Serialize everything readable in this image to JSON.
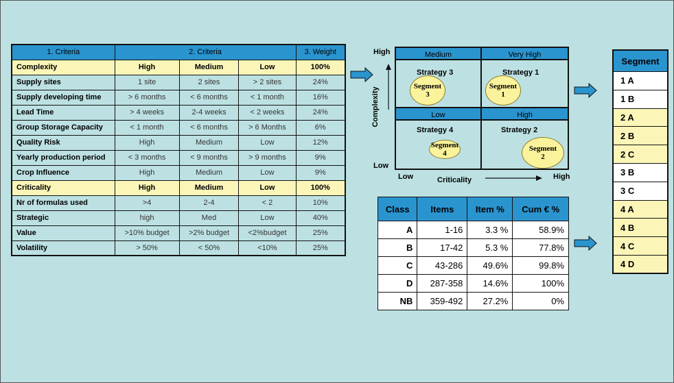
{
  "criteria_table": {
    "headers": [
      "1. Criteria",
      "2. Criteria",
      "3. Weight"
    ],
    "rows": [
      {
        "label": "Complexity",
        "high": "High",
        "medium": "Medium",
        "low": "Low",
        "weight": "100%",
        "highlight": true
      },
      {
        "label": "Supply sites",
        "high": "1 site",
        "medium": "2 sites",
        "low": "> 2 sites",
        "weight": "24%"
      },
      {
        "label": "Supply developing time",
        "high": "> 6 months",
        "medium": "< 6 months",
        "low": "< 1 month",
        "weight": "16%"
      },
      {
        "label": "Lead Time",
        "high": "> 4 weeks",
        "medium": "2-4 weeks",
        "low": "< 2 weeks",
        "weight": "24%"
      },
      {
        "label": "Group Storage Capacity",
        "high": "< 1 month",
        "medium": "< 6 months",
        "low": "> 6 Months",
        "weight": "6%"
      },
      {
        "label": "Quality Risk",
        "high": "High",
        "medium": "Medium",
        "low": "Low",
        "weight": "12%"
      },
      {
        "label": "Yearly production period",
        "high": "< 3 months",
        "medium": "< 9 months",
        "low": "> 9 months",
        "weight": "9%"
      },
      {
        "label": "Crop Influence",
        "high": "High",
        "medium": "Medium",
        "low": "Low",
        "weight": "9%"
      },
      {
        "label": "Criticality",
        "high": "High",
        "medium": "Medium",
        "low": "Low",
        "weight": "100%",
        "highlight": true
      },
      {
        "label": "Nr of formulas used",
        "high": ">4",
        "medium": "2-4",
        "low": "< 2",
        "weight": "10%"
      },
      {
        "label": "Strategic",
        "high": "high",
        "medium": "Med",
        "low": "Low",
        "weight": "40%"
      },
      {
        "label": "Value",
        "high": ">10% budget",
        "medium": ">2% budget",
        "low": "<2%budget",
        "weight": "25%"
      },
      {
        "label": "Volatility",
        "high": "> 50%",
        "medium": "< 50%",
        "low": "<10%",
        "weight": "25%"
      }
    ]
  },
  "matrix": {
    "y_axis": "Complexity",
    "x_axis": "Criticality",
    "y_high": "High",
    "y_low": "Low",
    "x_low": "Low",
    "x_high": "High",
    "quadrants": [
      {
        "header": "Medium",
        "strategy": "Strategy 3",
        "segment": "Segment",
        "segment_num": "3"
      },
      {
        "header": "Very High",
        "strategy": "Strategy 1",
        "segment": "Segment",
        "segment_num": "1"
      },
      {
        "header": "Low",
        "strategy": "Strategy 4",
        "segment": "Segment",
        "segment_num": "4"
      },
      {
        "header": "High",
        "strategy": "Strategy 2",
        "segment": "Segment",
        "segment_num": "2"
      }
    ]
  },
  "class_table": {
    "headers": [
      "Class",
      "Items",
      "Item %",
      "Cum € %"
    ],
    "rows": [
      [
        "A",
        "1-16",
        "3.3 %",
        "58.9%"
      ],
      [
        "B",
        "17-42",
        "5.3 %",
        "77.8%"
      ],
      [
        "C",
        "43-286",
        "49.6%",
        "99.8%"
      ],
      [
        "D",
        "287-358",
        "14.6%",
        "100%"
      ],
      [
        "NB",
        "359-492",
        "27.2%",
        "0%"
      ]
    ]
  },
  "segments": {
    "header": "Segment",
    "items": [
      {
        "label": "1 A",
        "color": "white"
      },
      {
        "label": "1 B",
        "color": "white"
      },
      {
        "label": "2 A",
        "color": "yellow"
      },
      {
        "label": "2 B",
        "color": "yellow"
      },
      {
        "label": "2 C",
        "color": "yellow"
      },
      {
        "label": "3 B",
        "color": "white"
      },
      {
        "label": "3 C",
        "color": "white"
      },
      {
        "label": "4 A",
        "color": "yellow"
      },
      {
        "label": "4 B",
        "color": "yellow"
      },
      {
        "label": "4 C",
        "color": "yellow"
      },
      {
        "label": "4 D",
        "color": "yellow"
      }
    ]
  },
  "colors": {
    "header_blue": "#2a94cf",
    "highlight_yellow": "#fbf6b8",
    "segment_yellow": "#fbf39c",
    "background": "#bde1e3"
  }
}
